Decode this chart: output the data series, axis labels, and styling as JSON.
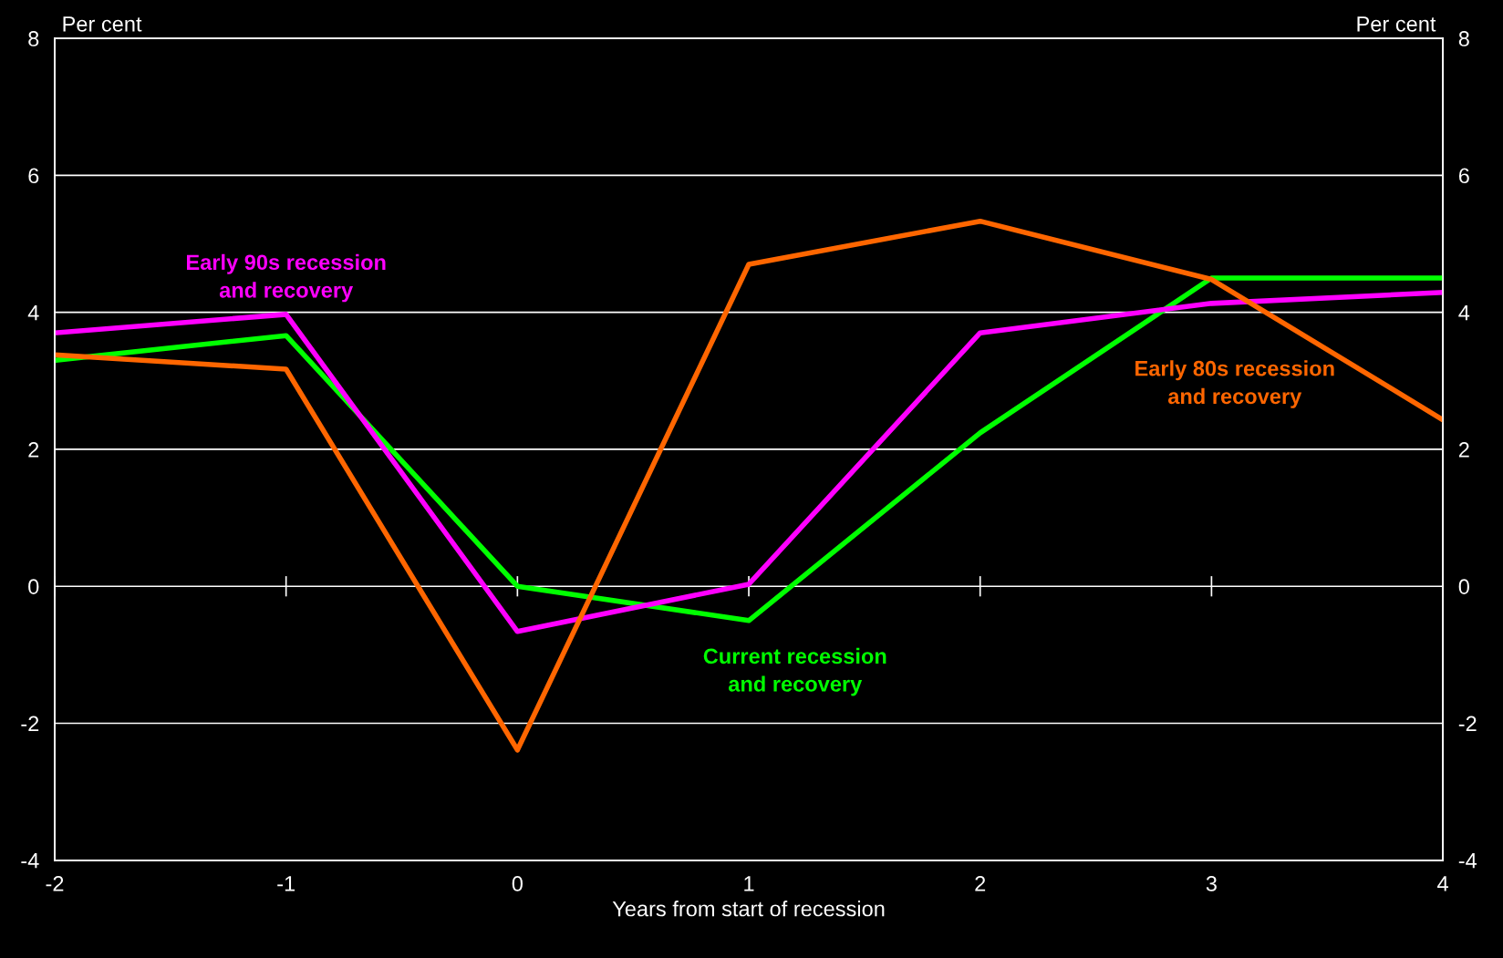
{
  "chart_data": {
    "type": "line",
    "xlabel": "Years from start of recession",
    "ylabel": "Per cent",
    "y2label": "Per cent",
    "x": [
      -2,
      -1,
      0,
      1,
      2,
      3,
      4
    ],
    "series": [
      {
        "name": "Current recession\nand recovery",
        "color": "#00ff00",
        "values": [
          3.3,
          3.66,
          0.0,
          -0.5,
          2.24,
          4.5,
          4.5
        ]
      },
      {
        "name": "Early 90s recession\nand recovery",
        "color": "#ff00ff",
        "values": [
          3.7,
          3.97,
          -0.66,
          0.03,
          3.7,
          4.13,
          4.29
        ]
      },
      {
        "name": "Early 80s recession\nand recovery",
        "color": "#ff6600",
        "values": [
          3.38,
          3.17,
          -2.39,
          4.7,
          5.33,
          4.48,
          2.43
        ]
      }
    ],
    "xlim": [
      -2,
      4
    ],
    "xticks": [
      -2,
      -1,
      0,
      1,
      2,
      3,
      4
    ],
    "ylim": [
      -4,
      8
    ],
    "yticks": [
      -4,
      -2,
      0,
      2,
      4,
      6,
      8
    ],
    "y2lim": [
      -4,
      8
    ],
    "y2ticks": [
      -4,
      -2,
      0,
      2,
      4,
      6,
      8
    ],
    "grid": "y",
    "legend": false,
    "marker": "none",
    "line_style": "solid"
  }
}
